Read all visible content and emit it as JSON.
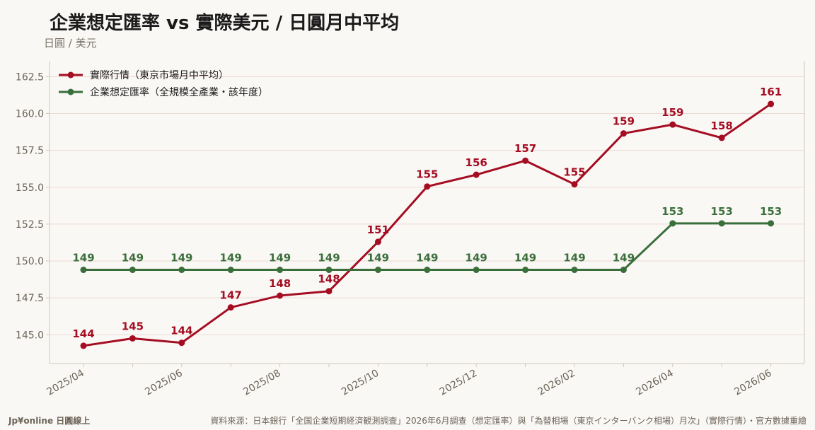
{
  "header": {
    "title": "企業想定匯率 vs 實際美元 / 日圓月中平均",
    "subtitle": "日圓 / 美元"
  },
  "footer": {
    "brand": "Jp¥online 日圓線上",
    "source": "資料來源：日本銀行「全国企業短期経済観測調査」2026年6月調查（想定匯率）與「為替相場（東京インターバンク相場）月次」（實際行情）・官方數據重繪"
  },
  "colors": {
    "actual": "#a50d22",
    "assumed": "#3a6e3a",
    "grid": "#ecd9d4",
    "axis": "#cfc7bd"
  },
  "chart_data": {
    "type": "line",
    "title": "企業想定匯率 vs 實際美元 / 日圓月中平均",
    "ylabel": "日圓 / 美元",
    "ylim": [
      143.0,
      163.5
    ],
    "yticks": [
      145.0,
      147.5,
      150.0,
      152.5,
      155.0,
      157.5,
      160.0,
      162.5
    ],
    "grid": true,
    "legend_position": "top-left",
    "x": [
      "2025/04",
      "2025/05",
      "2025/06",
      "2025/07",
      "2025/08",
      "2025/09",
      "2025/10",
      "2025/11",
      "2025/12",
      "2026/01",
      "2026/02",
      "2026/03",
      "2026/04",
      "2026/05",
      "2026/06"
    ],
    "xtick_labels": [
      "2025/04",
      "",
      "2025/06",
      "",
      "2025/08",
      "",
      "2025/10",
      "",
      "2025/12",
      "",
      "2026/02",
      "",
      "2026/04",
      "",
      "2026/06"
    ],
    "series": [
      {
        "name": "實際行情（東京市場月中平均）",
        "color": "#a50d22",
        "values": [
          144.25,
          144.75,
          144.45,
          146.85,
          147.65,
          147.95,
          151.3,
          155.05,
          155.85,
          156.8,
          155.2,
          158.65,
          159.25,
          158.35,
          160.65
        ],
        "labels": [
          "144",
          "145",
          "144",
          "147",
          "148",
          "148",
          "151",
          "155",
          "156",
          "157",
          "155",
          "159",
          "159",
          "158",
          "161"
        ]
      },
      {
        "name": "企業想定匯率（全規模全產業・該年度）",
        "color": "#3a6e3a",
        "values": [
          149.4,
          149.4,
          149.4,
          149.4,
          149.4,
          149.4,
          149.4,
          149.4,
          149.4,
          149.4,
          149.4,
          149.4,
          152.55,
          152.55,
          152.55
        ],
        "labels": [
          "149",
          "149",
          "149",
          "149",
          "149",
          "149",
          "149",
          "149",
          "149",
          "149",
          "149",
          "149",
          "153",
          "153",
          "153"
        ]
      }
    ]
  }
}
